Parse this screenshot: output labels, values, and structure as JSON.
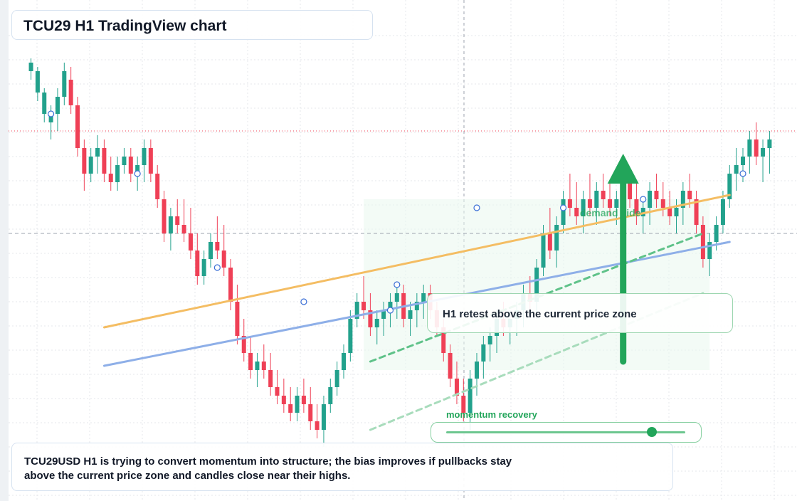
{
  "title": "TCU29 H1 TradingView chart",
  "summary": "TCU29USD H1 is trying to convert momentum into structure; the bias improves if pullbacks stay above the current price zone and candles close near their highs.",
  "callout": "H1 retest above the current price zone",
  "demand_label": "demand side",
  "slider": {
    "label": "momentum recovery",
    "value": 0.86
  },
  "colors": {
    "up": "#22a18c",
    "down": "#ef4056",
    "trend_orange": "#f4bd63",
    "trend_blue": "#8eafe8",
    "accent_green": "#22a55a"
  },
  "chart_data": {
    "type": "candlestick",
    "y_range": [
      0,
      100
    ],
    "reference_lines": [
      {
        "style": "dotted",
        "color": "#ef4056",
        "y": 76
      },
      {
        "style": "dashed",
        "color": "#9ca3af",
        "y": 52
      }
    ],
    "candles": [
      [
        3,
        90,
        93,
        88,
        92
      ],
      [
        4,
        85,
        91,
        83,
        90
      ],
      [
        5,
        80,
        86,
        78,
        85
      ],
      [
        6,
        78,
        82,
        74,
        80
      ],
      [
        7,
        80,
        86,
        76,
        84
      ],
      [
        8,
        84,
        92,
        82,
        90
      ],
      [
        9,
        88,
        91,
        80,
        82
      ],
      [
        10,
        82,
        84,
        70,
        72
      ],
      [
        11,
        72,
        74,
        62,
        66
      ],
      [
        12,
        66,
        72,
        64,
        70
      ],
      [
        13,
        70,
        75,
        66,
        72
      ],
      [
        14,
        72,
        74,
        64,
        66
      ],
      [
        15,
        66,
        70,
        62,
        64
      ],
      [
        16,
        64,
        70,
        62,
        68
      ],
      [
        17,
        68,
        72,
        66,
        70
      ],
      [
        18,
        70,
        72,
        64,
        66
      ],
      [
        19,
        66,
        70,
        62,
        68
      ],
      [
        20,
        68,
        74,
        64,
        72
      ],
      [
        21,
        72,
        74,
        64,
        66
      ],
      [
        22,
        66,
        68,
        58,
        60
      ],
      [
        23,
        60,
        62,
        50,
        52
      ],
      [
        24,
        52,
        58,
        48,
        56
      ],
      [
        25,
        56,
        60,
        52,
        54
      ],
      [
        26,
        54,
        60,
        50,
        52
      ],
      [
        27,
        52,
        58,
        46,
        48
      ],
      [
        28,
        48,
        52,
        40,
        42
      ],
      [
        29,
        42,
        48,
        40,
        46
      ],
      [
        30,
        46,
        52,
        44,
        50
      ],
      [
        31,
        50,
        56,
        46,
        48
      ],
      [
        32,
        48,
        54,
        42,
        44
      ],
      [
        33,
        44,
        46,
        34,
        36
      ],
      [
        34,
        36,
        40,
        26,
        28
      ],
      [
        35,
        28,
        32,
        22,
        24
      ],
      [
        36,
        24,
        28,
        18,
        20
      ],
      [
        37,
        20,
        24,
        16,
        22
      ],
      [
        38,
        22,
        26,
        18,
        20
      ],
      [
        39,
        20,
        24,
        14,
        16
      ],
      [
        40,
        16,
        20,
        12,
        14
      ],
      [
        41,
        14,
        18,
        10,
        12
      ],
      [
        42,
        12,
        16,
        8,
        10
      ],
      [
        43,
        10,
        16,
        8,
        14
      ],
      [
        44,
        14,
        18,
        10,
        12
      ],
      [
        45,
        12,
        16,
        6,
        8
      ],
      [
        46,
        8,
        12,
        4,
        6
      ],
      [
        47,
        6,
        14,
        2,
        12
      ],
      [
        48,
        12,
        18,
        10,
        16
      ],
      [
        49,
        16,
        22,
        14,
        20
      ],
      [
        50,
        20,
        26,
        18,
        24
      ],
      [
        51,
        24,
        34,
        22,
        32
      ],
      [
        52,
        32,
        38,
        30,
        36
      ],
      [
        53,
        36,
        42,
        32,
        34
      ],
      [
        54,
        34,
        38,
        28,
        30
      ],
      [
        55,
        30,
        34,
        26,
        32
      ],
      [
        56,
        32,
        36,
        28,
        34
      ],
      [
        57,
        34,
        38,
        30,
        36
      ],
      [
        58,
        36,
        40,
        32,
        38
      ],
      [
        59,
        38,
        40,
        30,
        32
      ],
      [
        60,
        32,
        36,
        28,
        34
      ],
      [
        61,
        34,
        38,
        30,
        36
      ],
      [
        62,
        36,
        40,
        32,
        38
      ],
      [
        63,
        38,
        40,
        32,
        34
      ],
      [
        64,
        34,
        36,
        28,
        30
      ],
      [
        65,
        30,
        32,
        22,
        24
      ],
      [
        66,
        24,
        26,
        16,
        18
      ],
      [
        67,
        18,
        22,
        12,
        14
      ],
      [
        68,
        14,
        18,
        8,
        10
      ],
      [
        69,
        10,
        20,
        6,
        18
      ],
      [
        70,
        18,
        24,
        14,
        22
      ],
      [
        71,
        22,
        28,
        18,
        26
      ],
      [
        72,
        26,
        30,
        22,
        28
      ],
      [
        73,
        28,
        34,
        24,
        32
      ],
      [
        74,
        32,
        36,
        28,
        30
      ],
      [
        75,
        30,
        34,
        26,
        32
      ],
      [
        76,
        32,
        36,
        28,
        34
      ],
      [
        77,
        34,
        40,
        30,
        38
      ],
      [
        78,
        38,
        42,
        34,
        36
      ],
      [
        79,
        36,
        46,
        32,
        44
      ],
      [
        80,
        44,
        54,
        42,
        52
      ],
      [
        81,
        52,
        58,
        46,
        48
      ],
      [
        82,
        48,
        56,
        44,
        54
      ],
      [
        83,
        54,
        62,
        52,
        60
      ],
      [
        84,
        60,
        66,
        56,
        58
      ],
      [
        85,
        58,
        64,
        54,
        56
      ],
      [
        86,
        56,
        62,
        52,
        60
      ],
      [
        87,
        60,
        66,
        56,
        58
      ],
      [
        88,
        58,
        64,
        54,
        62
      ],
      [
        89,
        62,
        66,
        58,
        60
      ],
      [
        90,
        60,
        64,
        56,
        58
      ],
      [
        91,
        58,
        62,
        54,
        60
      ],
      [
        92,
        60,
        66,
        56,
        64
      ],
      [
        93,
        64,
        66,
        58,
        60
      ],
      [
        94,
        60,
        64,
        54,
        56
      ],
      [
        95,
        56,
        60,
        52,
        58
      ],
      [
        96,
        58,
        64,
        54,
        62
      ],
      [
        97,
        62,
        66,
        58,
        60
      ],
      [
        98,
        60,
        64,
        56,
        58
      ],
      [
        99,
        58,
        62,
        54,
        56
      ],
      [
        100,
        56,
        60,
        52,
        58
      ],
      [
        101,
        58,
        64,
        54,
        62
      ],
      [
        102,
        62,
        66,
        58,
        60
      ],
      [
        103,
        60,
        62,
        52,
        54
      ],
      [
        104,
        54,
        56,
        44,
        46
      ],
      [
        105,
        46,
        52,
        42,
        50
      ],
      [
        106,
        50,
        56,
        48,
        54
      ],
      [
        107,
        54,
        62,
        52,
        60
      ],
      [
        108,
        60,
        68,
        58,
        66
      ],
      [
        109,
        66,
        72,
        62,
        68
      ],
      [
        110,
        68,
        72,
        64,
        70
      ],
      [
        111,
        70,
        76,
        66,
        74
      ],
      [
        112,
        74,
        78,
        68,
        70
      ],
      [
        113,
        70,
        74,
        64,
        72
      ],
      [
        114,
        72,
        76,
        66,
        74
      ]
    ],
    "trendlines": [
      {
        "color": "#f4bd63",
        "from": [
          14,
          30
        ],
        "to": [
          108,
          61
        ]
      },
      {
        "color": "#8eafe8",
        "from": [
          14,
          21
        ],
        "to": [
          108,
          50
        ]
      },
      {
        "color": "#5fc289",
        "style": "dashed",
        "from": [
          54,
          22
        ],
        "to": [
          104,
          52
        ]
      },
      {
        "color": "#a8dcbc",
        "style": "dashed",
        "from": [
          54,
          6
        ],
        "to": [
          104,
          38
        ]
      }
    ],
    "arrow": {
      "from": [
        92,
        22
      ],
      "to": [
        92,
        68
      ]
    },
    "demand_zone": {
      "x_range": [
        53,
        105
      ],
      "y_range": [
        20,
        60
      ]
    }
  }
}
